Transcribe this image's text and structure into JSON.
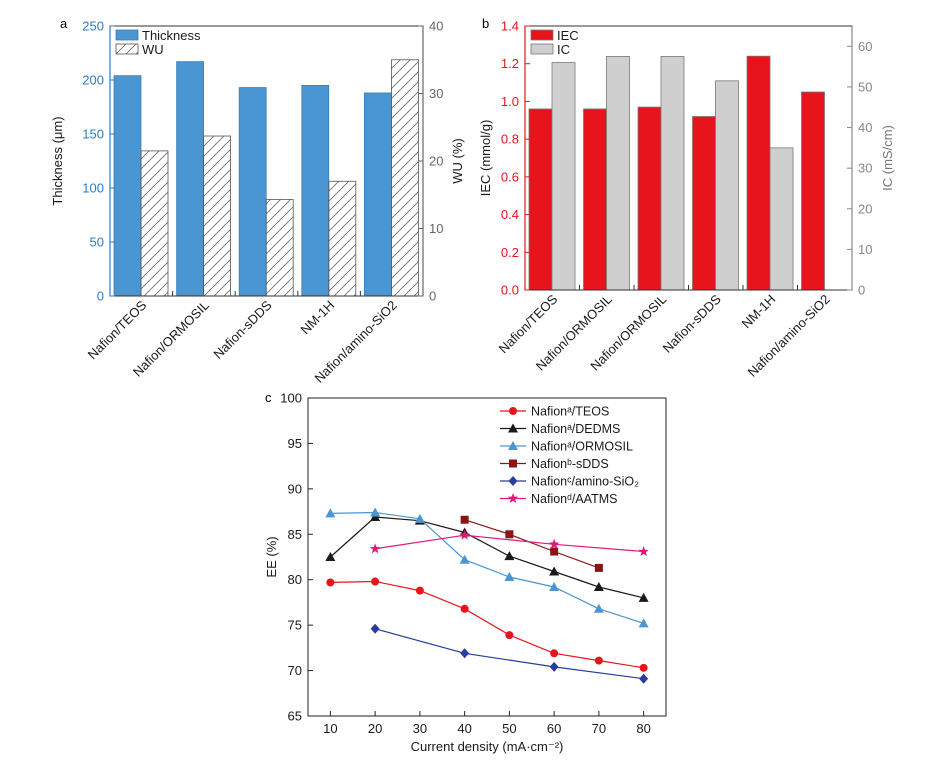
{
  "chart_data": [
    {
      "panel": "a",
      "type": "bar",
      "categories": [
        "Nafion/TEOS",
        "Nafion/ORMOSIL",
        "Nafion-sDDS",
        "NM-1H",
        "Nafion/amino-SiO2"
      ],
      "ylabel": "Thickness (μm)",
      "y2label": "WU (%)",
      "ylim": [
        0,
        250
      ],
      "y2lim": [
        0,
        40
      ],
      "yticks": [
        "0",
        "50",
        "100",
        "150",
        "200",
        "250"
      ],
      "y2ticks": [
        "0",
        "10",
        "20",
        "30",
        "40"
      ],
      "legend_position": "top-left",
      "grid": false,
      "series": [
        {
          "name": "Thickness",
          "axis": "left",
          "color": "#4a96d2",
          "values": [
            204,
            217,
            193,
            195,
            188
          ]
        },
        {
          "name": "WU",
          "axis": "right",
          "color": "#ffffff",
          "hatch": true,
          "values": [
            21.5,
            23.7,
            14.3,
            17,
            35
          ]
        }
      ]
    },
    {
      "panel": "b",
      "type": "bar",
      "categories": [
        "Nafion/TEOS",
        "Nafion/ORMOSIL",
        "Nafion/ORMOSIL",
        "Nafion-sDDS",
        "NM-1H",
        "Nafion/amino-SiO2"
      ],
      "ylabel": "IEC (mmol/g)",
      "y2label": "IC (mS/cm)",
      "ylim": [
        0,
        1.4
      ],
      "y2lim": [
        0,
        65
      ],
      "yticks": [
        "0.0",
        "0.2",
        "0.4",
        "0.6",
        "0.8",
        "1.0",
        "1.2",
        "1.4"
      ],
      "y2ticks": [
        "0",
        "10",
        "20",
        "30",
        "40",
        "50",
        "60"
      ],
      "legend_position": "top-left",
      "grid": false,
      "series": [
        {
          "name": "IEC",
          "axis": "left",
          "color": "#e8141c",
          "values": [
            0.96,
            0.96,
            0.97,
            0.92,
            1.24,
            1.05
          ]
        },
        {
          "name": "IC",
          "axis": "right",
          "color": "#cfcfcf",
          "values": [
            56,
            57.5,
            57.5,
            51.5,
            35,
            null
          ]
        }
      ]
    },
    {
      "panel": "c",
      "type": "line",
      "xlabel": "Current density (mA·cm⁻²)",
      "ylabel": "EE (%)",
      "xlim": [
        5,
        85
      ],
      "ylim": [
        65,
        100
      ],
      "xticks": [
        "10",
        "20",
        "30",
        "40",
        "50",
        "60",
        "70",
        "80"
      ],
      "yticks": [
        "65",
        "70",
        "75",
        "80",
        "85",
        "90",
        "95",
        "100"
      ],
      "legend_position": "top-right",
      "grid": false,
      "series": [
        {
          "name": "Nafionᵃ/TEOS",
          "color": "#e8141c",
          "marker": "circle",
          "x": [
            10,
            20,
            30,
            40,
            50,
            60,
            70,
            80
          ],
          "y": [
            79.7,
            79.8,
            78.8,
            76.8,
            73.9,
            71.9,
            71.1,
            70.3
          ]
        },
        {
          "name": "Nafionᵃ/DEDMS",
          "color": "#1a1a1a",
          "marker": "triangle",
          "x": [
            10,
            20,
            30,
            40,
            50,
            60,
            70,
            80
          ],
          "y": [
            82.5,
            86.9,
            86.5,
            85.2,
            82.6,
            80.9,
            79.2,
            78.0
          ]
        },
        {
          "name": "Nafionᵃ/ORMOSIL",
          "color": "#4a96d2",
          "marker": "triangle",
          "x": [
            10,
            20,
            30,
            40,
            50,
            60,
            70,
            80
          ],
          "y": [
            87.3,
            87.4,
            86.7,
            82.2,
            80.3,
            79.2,
            76.8,
            75.2
          ]
        },
        {
          "name": "Nafionᵇ-sDDS",
          "color": "#8b1414",
          "marker": "square",
          "x": [
            40,
            50,
            60,
            70
          ],
          "y": [
            86.6,
            85.0,
            83.1,
            81.3
          ]
        },
        {
          "name": "Nafionᶜ/amino-SiO₂",
          "color": "#2a3c9c",
          "marker": "diamond",
          "x": [
            20,
            40,
            60,
            80
          ],
          "y": [
            74.6,
            71.9,
            70.4,
            69.1
          ]
        },
        {
          "name": "Nafionᵈ/AATMS",
          "color": "#e0187a",
          "marker": "star",
          "x": [
            20,
            40,
            60,
            80
          ],
          "y": [
            83.4,
            84.9,
            83.9,
            83.1
          ]
        }
      ]
    }
  ]
}
